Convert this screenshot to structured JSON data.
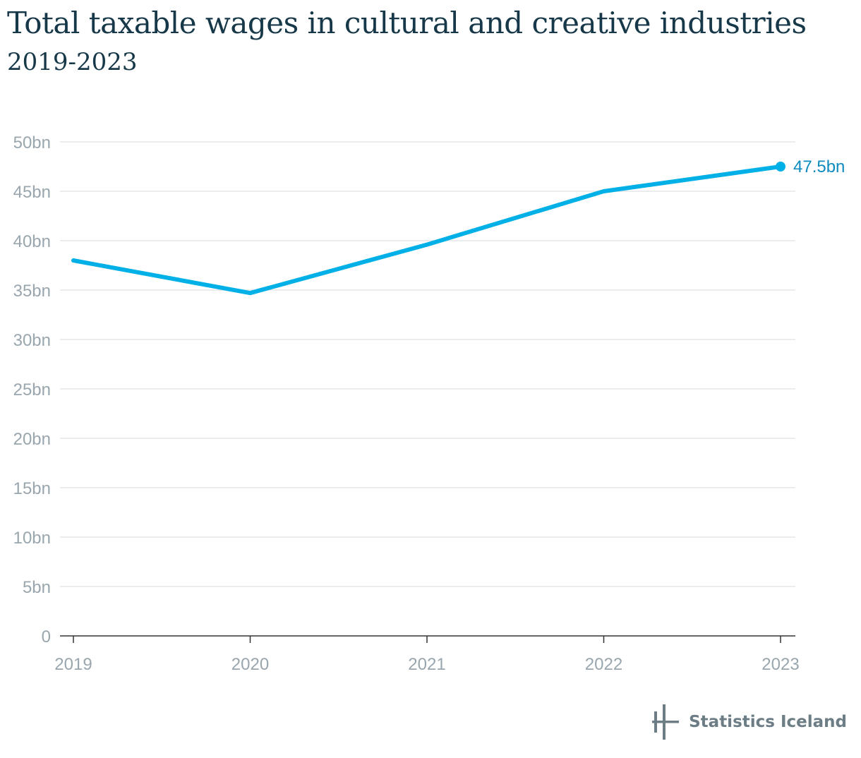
{
  "header": {
    "title": "Total taxable wages in cultural and creative industries",
    "subtitle": "2019-2023"
  },
  "chart_data": {
    "type": "line",
    "title": "Total taxable wages in cultural and creative industries",
    "subtitle": "2019-2023",
    "xlabel": "",
    "ylabel": "",
    "x": [
      "2019",
      "2020",
      "2021",
      "2022",
      "2023"
    ],
    "series": [
      {
        "name": "Total taxable wages",
        "values": [
          38.0,
          34.7,
          39.6,
          45.0,
          47.5
        ],
        "color": "#00b0e6"
      }
    ],
    "ylim": [
      0,
      50
    ],
    "yticks": [
      0,
      5,
      10,
      15,
      20,
      25,
      30,
      35,
      40,
      45,
      50
    ],
    "ytick_labels": [
      "0",
      "5bn",
      "10bn",
      "15bn",
      "20bn",
      "25bn",
      "30bn",
      "35bn",
      "40bn",
      "45bn",
      "50bn"
    ],
    "end_label": "47.5bn",
    "grid": true
  },
  "footer": {
    "brand": "Statistics Iceland",
    "logo_icon": "statistics-iceland-logo-icon"
  },
  "colors": {
    "title": "#173848",
    "line": "#00b0e6",
    "end_label": "#0f8bc0",
    "grid": "#e3e6e8",
    "tick": "#9aa6ae"
  }
}
